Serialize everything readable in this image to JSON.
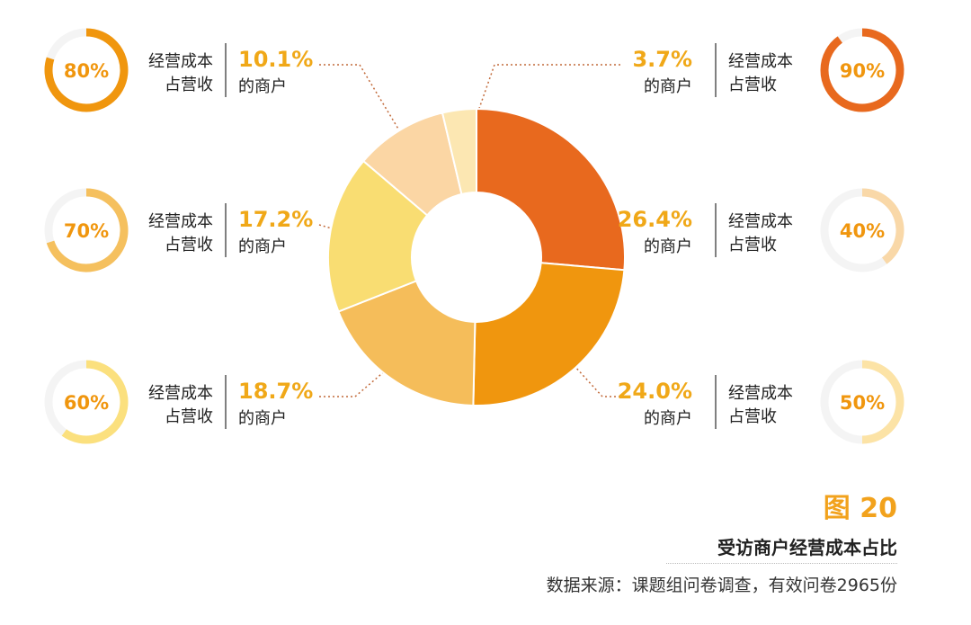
{
  "figure_number": "图 20",
  "title": "受访商户经营成本占比",
  "source": "数据来源：课题组问卷调查，有效问卷2965份",
  "chart_data": {
    "type": "pie",
    "subtype": "donut",
    "title": "受访商户经营成本占比",
    "category_label_line1": "经营成本",
    "category_label_line2": "占营收",
    "value_suffix": "的商户",
    "slices": [
      {
        "category": "90%",
        "value": 26.4,
        "value_label": "26.4%",
        "color": "#e8691e"
      },
      {
        "category": "80%",
        "value": 24.0,
        "value_label": "24.0%",
        "color": "#f0960e"
      },
      {
        "category": "70%",
        "value": 18.7,
        "value_label": "18.7%",
        "color": "#f5bd5a"
      },
      {
        "category": "60%",
        "value": 17.2,
        "value_label": "17.2%",
        "color": "#f9dd72"
      },
      {
        "category": "50%",
        "value": 10.1,
        "value_label": "10.1%",
        "color": "#fbd6a4"
      },
      {
        "category": "40%",
        "value": 3.7,
        "value_label": "3.7%",
        "color": "#fce7b2"
      }
    ],
    "callouts": [
      {
        "slice": 5,
        "side": "right",
        "row": 0,
        "gauge": "90%",
        "gauge_value": 90,
        "gauge_color": "#e8691e"
      },
      {
        "slice": 0,
        "side": "right",
        "row": 1,
        "gauge": "40%",
        "gauge_value": 40,
        "gauge_color": "#f9d8a8"
      },
      {
        "slice": 1,
        "side": "right",
        "row": 2,
        "gauge": "50%",
        "gauge_value": 50,
        "gauge_color": "#fce3a6"
      },
      {
        "slice": 4,
        "side": "left",
        "row": 0,
        "gauge": "80%",
        "gauge_value": 80,
        "gauge_color": "#f0960e"
      },
      {
        "slice": 3,
        "side": "left",
        "row": 1,
        "gauge": "70%",
        "gauge_value": 70,
        "gauge_color": "#f5c05e"
      },
      {
        "slice": 2,
        "side": "left",
        "row": 2,
        "gauge": "60%",
        "gauge_value": 60,
        "gauge_color": "#fbe07e"
      }
    ],
    "value_color": "#f0a818",
    "gauge_track_color": "#f4f4f4",
    "connector_color": "#c26a3a"
  }
}
